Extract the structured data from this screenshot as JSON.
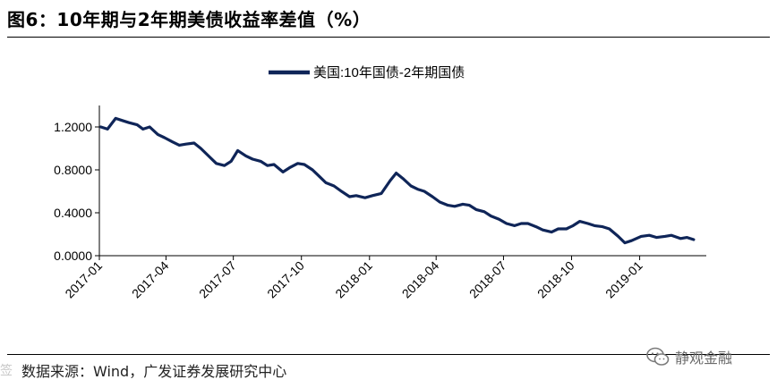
{
  "figure": {
    "title": "图6：10年期与2年期美债收益率差值（%）",
    "source": "数据来源：Wind，广发证券发展研究中心",
    "watermark": "静观金融",
    "watermark_left": "签"
  },
  "colors": {
    "series": "#0f2558",
    "axis": "#000000",
    "text": "#000000"
  },
  "chart_data": {
    "type": "line",
    "title": "",
    "xlabel": "",
    "ylabel": "",
    "ylim": [
      0,
      1.4
    ],
    "yticks": [
      {
        "value": 0.0,
        "label": "0.0000"
      },
      {
        "value": 0.4,
        "label": "0.4000"
      },
      {
        "value": 0.8,
        "label": "0.8000"
      },
      {
        "value": 1.2,
        "label": "1.2000"
      }
    ],
    "xticks": [
      "2017-01",
      "2017-04",
      "2017-07",
      "2017-10",
      "2018-01",
      "2018-04",
      "2018-07",
      "2018-10",
      "2019-01"
    ],
    "grid": false,
    "legend": "top-center",
    "series": [
      {
        "name": "美国:10年国债-2年期国债",
        "x": [
          "2017-01-03",
          "2017-01-12",
          "2017-01-23",
          "2017-02-01",
          "2017-02-10",
          "2017-02-21",
          "2017-03-01",
          "2017-03-10",
          "2017-03-21",
          "2017-03-30",
          "2017-04-10",
          "2017-04-19",
          "2017-04-28",
          "2017-05-09",
          "2017-05-18",
          "2017-05-30",
          "2017-06-08",
          "2017-06-19",
          "2017-06-28",
          "2017-07-07",
          "2017-07-18",
          "2017-07-27",
          "2017-08-07",
          "2017-08-16",
          "2017-08-25",
          "2017-09-06",
          "2017-09-15",
          "2017-09-26",
          "2017-10-05",
          "2017-10-16",
          "2017-10-25",
          "2017-11-03",
          "2017-11-14",
          "2017-11-24",
          "2017-12-05",
          "2017-12-14",
          "2017-12-26",
          "2018-01-05",
          "2018-01-17",
          "2018-01-29",
          "2018-02-06",
          "2018-02-15",
          "2018-02-26",
          "2018-03-07",
          "2018-03-16",
          "2018-03-27",
          "2018-04-06",
          "2018-04-17",
          "2018-04-26",
          "2018-05-07",
          "2018-05-16",
          "2018-05-25",
          "2018-06-05",
          "2018-06-14",
          "2018-06-25",
          "2018-07-05",
          "2018-07-16",
          "2018-07-25",
          "2018-08-03",
          "2018-08-14",
          "2018-08-23",
          "2018-09-04",
          "2018-09-13",
          "2018-09-24",
          "2018-10-03",
          "2018-10-12",
          "2018-10-23",
          "2018-11-01",
          "2018-11-12",
          "2018-11-21",
          "2018-12-03",
          "2018-12-12",
          "2018-12-21",
          "2019-01-03",
          "2019-01-14",
          "2019-01-24",
          "2019-02-04",
          "2019-02-13",
          "2019-02-25",
          "2019-03-06",
          "2019-03-15"
        ],
        "y": [
          1.2,
          1.18,
          1.28,
          1.26,
          1.24,
          1.22,
          1.18,
          1.2,
          1.13,
          1.1,
          1.06,
          1.03,
          1.04,
          1.05,
          1.0,
          0.92,
          0.86,
          0.84,
          0.88,
          0.98,
          0.93,
          0.9,
          0.88,
          0.84,
          0.85,
          0.78,
          0.82,
          0.86,
          0.85,
          0.8,
          0.74,
          0.68,
          0.65,
          0.6,
          0.55,
          0.56,
          0.54,
          0.56,
          0.58,
          0.7,
          0.77,
          0.72,
          0.65,
          0.62,
          0.6,
          0.55,
          0.5,
          0.47,
          0.46,
          0.48,
          0.47,
          0.43,
          0.41,
          0.37,
          0.34,
          0.3,
          0.28,
          0.3,
          0.3,
          0.27,
          0.24,
          0.22,
          0.25,
          0.25,
          0.28,
          0.32,
          0.3,
          0.28,
          0.27,
          0.25,
          0.18,
          0.12,
          0.14,
          0.18,
          0.19,
          0.17,
          0.18,
          0.19,
          0.16,
          0.17,
          0.15
        ]
      }
    ]
  }
}
